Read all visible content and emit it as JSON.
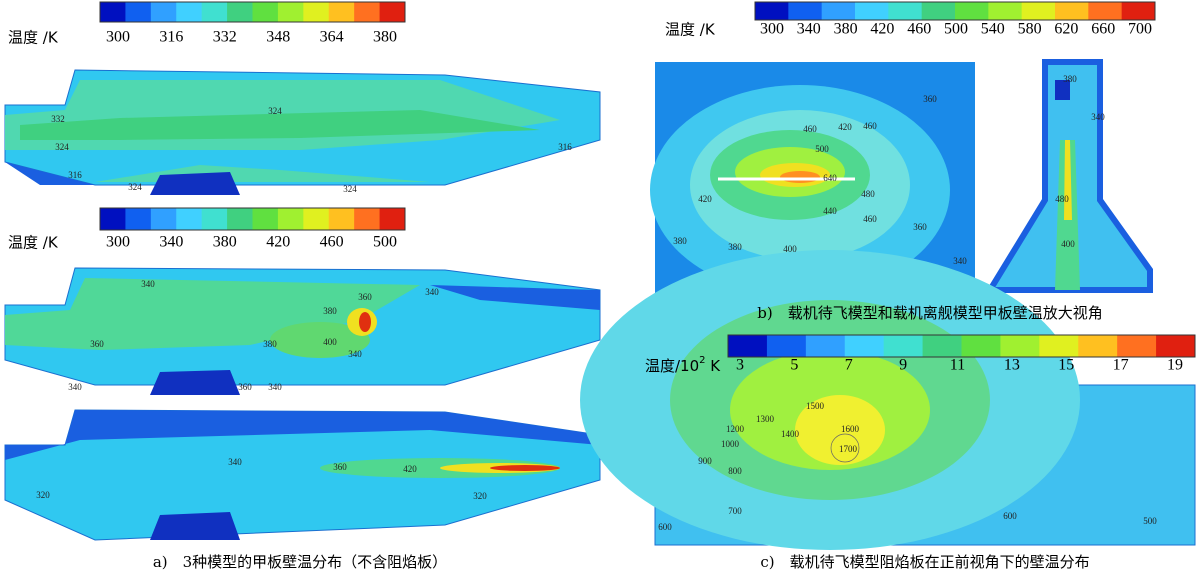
{
  "panel_a": {
    "colorbars": [
      {
        "label": "温度 /K",
        "ticks": [
          "300",
          "316",
          "332",
          "348",
          "364",
          "380"
        ]
      },
      {
        "label": "温度 /K",
        "ticks": [
          "300",
          "340",
          "380",
          "420",
          "460",
          "500"
        ]
      }
    ],
    "deck1_labels": [
      "332",
      "324",
      "316",
      "324",
      "324",
      "324",
      "316"
    ],
    "deck2_labels": [
      "340",
      "360",
      "380",
      "400",
      "360",
      "380",
      "340",
      "340",
      "360",
      "340",
      "340"
    ],
    "deck3_labels": [
      "340",
      "360",
      "420",
      "320",
      "320"
    ],
    "caption": "a)　3种模型的甲板壁温分布（不含阻焰板）"
  },
  "panel_b": {
    "colorbar": {
      "label": "温度 /K",
      "ticks": [
        "300",
        "340",
        "380",
        "420",
        "460",
        "500",
        "540",
        "580",
        "620",
        "660",
        "700"
      ]
    },
    "left_labels": [
      "360",
      "460",
      "420",
      "460",
      "500",
      "640",
      "420",
      "440",
      "460",
      "480",
      "380",
      "380",
      "400",
      "360",
      "340"
    ],
    "right_labels": [
      "380",
      "340",
      "480",
      "400"
    ],
    "caption": "b)　载机待飞模型和载机离舰模型甲板壁温放大视角"
  },
  "panel_c": {
    "colorbar": {
      "label_prefix": "温度/10",
      "label_sup": "2",
      "label_suffix": " K",
      "ticks": [
        "3",
        "5",
        "7",
        "9",
        "11",
        "13",
        "15",
        "17",
        "19"
      ]
    },
    "labels": [
      "1500",
      "1600",
      "1700",
      "1400",
      "1300",
      "1200",
      "1000",
      "900",
      "800",
      "700",
      "600",
      "600",
      "500"
    ],
    "caption": "c)　载机待飞模型阻焰板在正前视角下的壁温分布"
  }
}
